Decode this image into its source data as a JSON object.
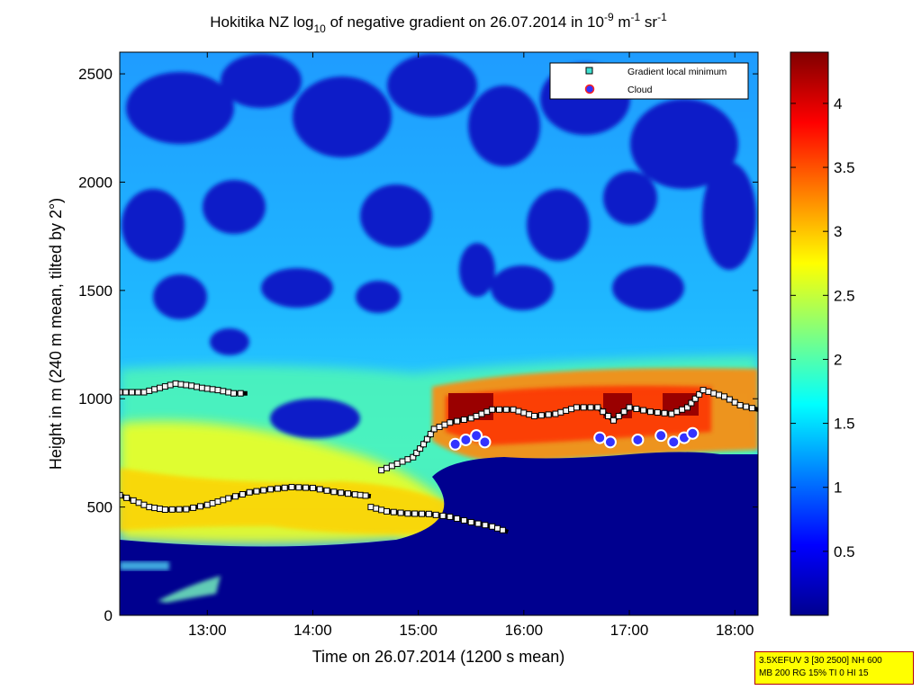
{
  "chart_data": {
    "type": "heatmap",
    "title": "Hokitika NZ log₁₀ of negative gradient on 26.07.2014 in 10⁻⁹ m⁻¹ sr⁻¹",
    "xlabel": "Time on 26.07.2014 (1200 s mean)",
    "ylabel": "Height in m (240 m mean, tilted by 2°)",
    "xlim_hours": [
      12.17,
      18.22
    ],
    "ylim": [
      0,
      2600
    ],
    "x_ticks": [
      "13:00",
      "14:00",
      "15:00",
      "16:00",
      "17:00",
      "18:00"
    ],
    "x_tick_hours": [
      13,
      14,
      15,
      16,
      17,
      18
    ],
    "y_ticks": [
      0,
      500,
      1000,
      1500,
      2000,
      2500
    ],
    "colorbar": {
      "range": [
        0,
        4.4
      ],
      "ticks": [
        0.5,
        1,
        1.5,
        2,
        2.5,
        3,
        3.5,
        4
      ],
      "tick_labels": [
        "0.5",
        "1",
        "1.5",
        "2",
        "2.5",
        "3",
        "3.5",
        "4"
      ],
      "colormap": "jet"
    },
    "legend": {
      "position": "top-right",
      "entries": [
        {
          "label": "Gradient local minimum",
          "marker": "square",
          "color": "#40e0d0"
        },
        {
          "label": "Cloud",
          "marker": "circle",
          "color": "#3333ff"
        }
      ]
    },
    "series": [
      {
        "name": "Gradient local minimum",
        "segments": [
          [
            [
              12.17,
              1030
            ],
            [
              12.4,
              1030
            ],
            [
              12.55,
              1050
            ],
            [
              12.7,
              1070
            ],
            [
              12.85,
              1060
            ],
            [
              12.95,
              1050
            ],
            [
              13.1,
              1040
            ],
            [
              13.25,
              1025
            ],
            [
              13.38,
              1025
            ]
          ],
          [
            [
              12.17,
              555
            ],
            [
              12.3,
              530
            ],
            [
              12.45,
              500
            ],
            [
              12.6,
              488
            ],
            [
              12.8,
              490
            ],
            [
              13.0,
              510
            ],
            [
              13.2,
              540
            ],
            [
              13.4,
              568
            ],
            [
              13.6,
              582
            ],
            [
              13.8,
              592
            ],
            [
              14.0,
              588
            ],
            [
              14.2,
              570
            ],
            [
              14.4,
              558
            ],
            [
              14.55,
              550
            ]
          ],
          [
            [
              14.55,
              500
            ],
            [
              14.7,
              480
            ],
            [
              14.9,
              470
            ],
            [
              15.1,
              468
            ],
            [
              15.3,
              455
            ],
            [
              15.5,
              430
            ],
            [
              15.7,
              410
            ],
            [
              15.85,
              385
            ]
          ],
          [
            [
              14.65,
              670
            ],
            [
              14.8,
              700
            ],
            [
              14.95,
              730
            ],
            [
              15.05,
              790
            ],
            [
              15.15,
              860
            ],
            [
              15.3,
              890
            ],
            [
              15.5,
              910
            ],
            [
              15.7,
              950
            ],
            [
              15.9,
              950
            ],
            [
              16.1,
              920
            ],
            [
              16.3,
              930
            ],
            [
              16.5,
              960
            ],
            [
              16.7,
              960
            ],
            [
              16.85,
              900
            ],
            [
              17.0,
              960
            ],
            [
              17.2,
              940
            ],
            [
              17.4,
              930
            ],
            [
              17.55,
              960
            ],
            [
              17.7,
              1040
            ],
            [
              17.9,
              1010
            ],
            [
              18.05,
              970
            ],
            [
              18.22,
              950
            ]
          ]
        ]
      },
      {
        "name": "Cloud",
        "points": [
          [
            15.35,
            790
          ],
          [
            15.45,
            810
          ],
          [
            15.55,
            830
          ],
          [
            15.63,
            800
          ],
          [
            16.72,
            820
          ],
          [
            16.82,
            800
          ],
          [
            17.08,
            810
          ],
          [
            17.3,
            830
          ],
          [
            17.42,
            800
          ],
          [
            17.52,
            820
          ],
          [
            17.6,
            840
          ]
        ]
      }
    ]
  },
  "info_box": {
    "line1": "3.5XEFUV 3 [30 2500] NH 600",
    "line2": "MB 200 RG 15% TI 0 HI 15"
  }
}
